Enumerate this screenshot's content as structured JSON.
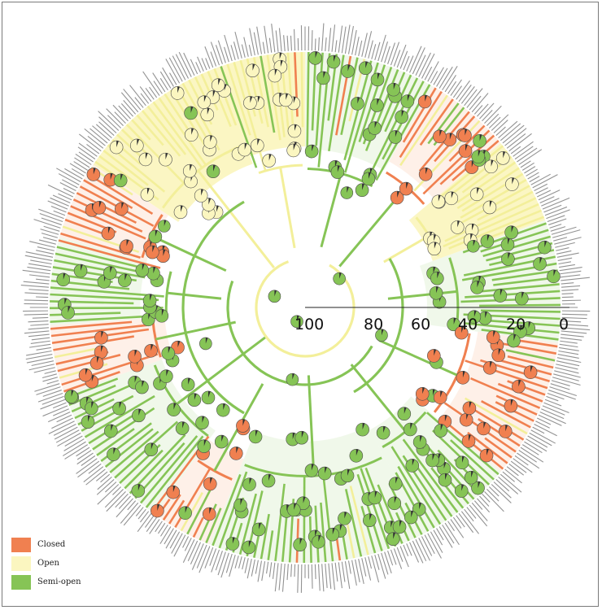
{
  "colors": {
    "closed": "#f08050",
    "open": "#fbf6c0",
    "semi_open": "#86c456",
    "open_branch": "#f3ef9a",
    "tip_label": "#6e6e6e"
  },
  "axis": {
    "ticks": [
      "100",
      "80",
      "60",
      "40",
      "20",
      "0"
    ]
  },
  "legend": {
    "items": [
      {
        "label": "Closed",
        "color": "#f08050"
      },
      {
        "label": "Open",
        "color": "#fbf6c0"
      },
      {
        "label": "Semi-open",
        "color": "#86c456"
      }
    ]
  }
}
